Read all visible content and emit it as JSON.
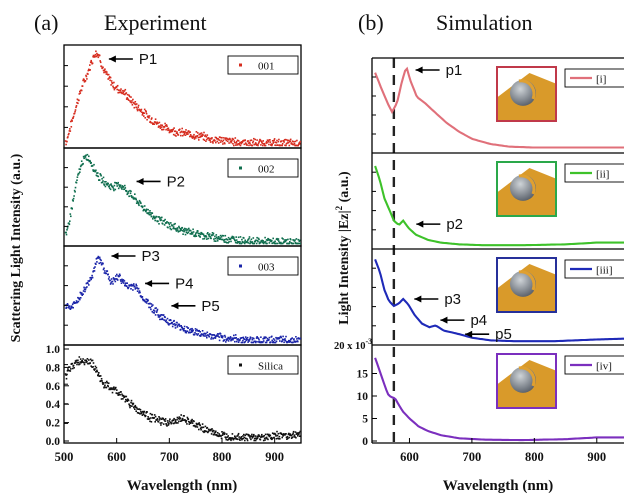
{
  "figure": {
    "panel_a_label": "(a)",
    "panel_a_title": "Experiment",
    "panel_b_label": "(b)",
    "panel_b_title": "Simulation"
  },
  "chart_data": [
    {
      "type": "scatter",
      "title": "Experiment",
      "xlabel": "Wavelength (nm)",
      "ylabel": "Scattering Light Intensity (a.u.)",
      "xlim": [
        500,
        950
      ],
      "xticks": [
        "500",
        "600",
        "700",
        "800",
        "900"
      ],
      "grid": false,
      "panels": [
        {
          "legend": "001",
          "color": "#d62c1e",
          "annotations": [
            {
              "text": "P1",
              "x": 570
            }
          ],
          "curve": [
            [
              505,
              0.05
            ],
            [
              515,
              0.25
            ],
            [
              525,
              0.45
            ],
            [
              535,
              0.62
            ],
            [
              545,
              0.75
            ],
            [
              553,
              0.88
            ],
            [
              560,
              0.97
            ],
            [
              567,
              0.93
            ],
            [
              575,
              0.78
            ],
            [
              585,
              0.7
            ],
            [
              595,
              0.62
            ],
            [
              605,
              0.58
            ],
            [
              615,
              0.55
            ],
            [
              625,
              0.48
            ],
            [
              640,
              0.4
            ],
            [
              660,
              0.3
            ],
            [
              680,
              0.22
            ],
            [
              700,
              0.17
            ],
            [
              720,
              0.14
            ],
            [
              740,
              0.12
            ],
            [
              760,
              0.1
            ],
            [
              780,
              0.07
            ],
            [
              800,
              0.06
            ],
            [
              830,
              0.04
            ],
            [
              870,
              0.03
            ],
            [
              910,
              0.03
            ],
            [
              948,
              0.03
            ]
          ]
        },
        {
          "legend": "002",
          "color": "#0f6e4e",
          "annotations": [
            {
              "text": "P2",
              "x": 615
            }
          ],
          "curve": [
            [
              505,
              0.1
            ],
            [
              515,
              0.4
            ],
            [
              525,
              0.7
            ],
            [
              535,
              0.9
            ],
            [
              545,
              0.95
            ],
            [
              555,
              0.85
            ],
            [
              565,
              0.74
            ],
            [
              575,
              0.68
            ],
            [
              590,
              0.62
            ],
            [
              605,
              0.65
            ],
            [
              615,
              0.6
            ],
            [
              630,
              0.52
            ],
            [
              650,
              0.4
            ],
            [
              670,
              0.3
            ],
            [
              690,
              0.23
            ],
            [
              710,
              0.18
            ],
            [
              730,
              0.14
            ],
            [
              760,
              0.1
            ],
            [
              790,
              0.07
            ],
            [
              820,
              0.05
            ],
            [
              860,
              0.03
            ],
            [
              900,
              0.02
            ],
            [
              948,
              0.02
            ]
          ]
        },
        {
          "legend": "003",
          "color": "#1a24a8",
          "annotations": [
            {
              "text": "P3",
              "x": 575
            },
            {
              "text": "P4",
              "x": 635
            },
            {
              "text": "P5",
              "x": 685
            }
          ],
          "curve": [
            [
              505,
              0.4
            ],
            [
              515,
              0.38
            ],
            [
              525,
              0.45
            ],
            [
              540,
              0.58
            ],
            [
              555,
              0.75
            ],
            [
              565,
              0.92
            ],
            [
              575,
              0.82
            ],
            [
              590,
              0.65
            ],
            [
              605,
              0.72
            ],
            [
              620,
              0.6
            ],
            [
              635,
              0.62
            ],
            [
              650,
              0.48
            ],
            [
              665,
              0.4
            ],
            [
              680,
              0.3
            ],
            [
              695,
              0.25
            ],
            [
              710,
              0.2
            ],
            [
              730,
              0.15
            ],
            [
              760,
              0.1
            ],
            [
              790,
              0.06
            ],
            [
              830,
              0.04
            ],
            [
              880,
              0.03
            ],
            [
              948,
              0.03
            ]
          ]
        },
        {
          "legend": "Silica",
          "color": "#111111",
          "ylim": [
            0.0,
            1.0
          ],
          "yticks": [
            "0.0",
            "0.2",
            "0.4",
            "0.6",
            "0.8",
            "1.0"
          ],
          "curve": [
            [
              505,
              0.72
            ],
            [
              515,
              0.82
            ],
            [
              525,
              0.86
            ],
            [
              535,
              0.88
            ],
            [
              545,
              0.87
            ],
            [
              555,
              0.84
            ],
            [
              565,
              0.72
            ],
            [
              575,
              0.62
            ],
            [
              590,
              0.57
            ],
            [
              605,
              0.52
            ],
            [
              620,
              0.44
            ],
            [
              640,
              0.34
            ],
            [
              660,
              0.27
            ],
            [
              680,
              0.22
            ],
            [
              700,
              0.2
            ],
            [
              715,
              0.22
            ],
            [
              725,
              0.25
            ],
            [
              740,
              0.2
            ],
            [
              760,
              0.15
            ],
            [
              780,
              0.1
            ],
            [
              800,
              0.06
            ],
            [
              820,
              0.05
            ],
            [
              850,
              0.04
            ],
            [
              880,
              0.04
            ],
            [
              910,
              0.06
            ],
            [
              948,
              0.07
            ]
          ]
        }
      ]
    },
    {
      "type": "line",
      "title": "Simulation",
      "xlabel": "Wavelength (nm)",
      "ylabel": "Light Intensity |Ez|2 (a.u.)",
      "xlim": [
        540,
        950
      ],
      "xticks": [
        "600",
        "700",
        "800",
        "900"
      ],
      "grid": false,
      "dashed_reference_x": 575,
      "panels": [
        {
          "legend": "[i]",
          "color": "#e0707a",
          "annotations": [
            {
              "text": "p1",
              "x": 597
            }
          ],
          "curve": [
            [
              545,
              0.9
            ],
            [
              555,
              0.72
            ],
            [
              565,
              0.55
            ],
            [
              572,
              0.45
            ],
            [
              580,
              0.55
            ],
            [
              588,
              0.8
            ],
            [
              595,
              0.97
            ],
            [
              602,
              0.8
            ],
            [
              612,
              0.62
            ],
            [
              625,
              0.55
            ],
            [
              640,
              0.45
            ],
            [
              660,
              0.32
            ],
            [
              680,
              0.22
            ],
            [
              700,
              0.14
            ],
            [
              730,
              0.08
            ],
            [
              760,
              0.05
            ],
            [
              800,
              0.04
            ],
            [
              850,
              0.04
            ],
            [
              900,
              0.04
            ],
            [
              948,
              0.04
            ]
          ]
        },
        {
          "legend": "[ii]",
          "color": "#3ec22a",
          "annotations": [
            {
              "text": "p2",
              "x": 595
            }
          ],
          "curve": [
            [
              545,
              0.92
            ],
            [
              553,
              0.75
            ],
            [
              560,
              0.55
            ],
            [
              568,
              0.42
            ],
            [
              575,
              0.3
            ],
            [
              583,
              0.25
            ],
            [
              590,
              0.3
            ],
            [
              598,
              0.22
            ],
            [
              610,
              0.14
            ],
            [
              630,
              0.08
            ],
            [
              650,
              0.05
            ],
            [
              680,
              0.03
            ],
            [
              720,
              0.02
            ],
            [
              780,
              0.02
            ],
            [
              850,
              0.03
            ],
            [
              900,
              0.05
            ],
            [
              948,
              0.05
            ]
          ]
        },
        {
          "legend": "[iii]",
          "color": "#1f2ab8",
          "annotations": [
            {
              "text": "p3",
              "x": 595
            },
            {
              "text": "p4",
              "x": 640
            },
            {
              "text": "p5",
              "x": 670
            }
          ],
          "curve": [
            [
              545,
              0.95
            ],
            [
              553,
              0.8
            ],
            [
              560,
              0.6
            ],
            [
              567,
              0.48
            ],
            [
              575,
              0.42
            ],
            [
              583,
              0.45
            ],
            [
              590,
              0.5
            ],
            [
              598,
              0.44
            ],
            [
              608,
              0.32
            ],
            [
              620,
              0.22
            ],
            [
              632,
              0.18
            ],
            [
              642,
              0.2
            ],
            [
              655,
              0.14
            ],
            [
              668,
              0.12
            ],
            [
              680,
              0.1
            ],
            [
              700,
              0.06
            ],
            [
              730,
              0.03
            ],
            [
              770,
              0.02
            ],
            [
              830,
              0.02
            ],
            [
              900,
              0.04
            ],
            [
              948,
              0.05
            ]
          ]
        },
        {
          "legend": "[iv]",
          "color": "#7b2fbe",
          "ymax": 20,
          "y_exponent": "20 x 10-3",
          "yticks": [
            "0",
            "5",
            "10",
            "15"
          ],
          "curve": [
            [
              545,
              18.5
            ],
            [
              550,
              16.5
            ],
            [
              555,
              14.5
            ],
            [
              560,
              12.5
            ],
            [
              565,
              10.5
            ],
            [
              570,
              9.8
            ],
            [
              577,
              9.5
            ],
            [
              583,
              8.0
            ],
            [
              590,
              6.5
            ],
            [
              600,
              5.0
            ],
            [
              615,
              3.2
            ],
            [
              630,
              2.2
            ],
            [
              650,
              1.3
            ],
            [
              680,
              0.6
            ],
            [
              720,
              0.3
            ],
            [
              780,
              0.2
            ],
            [
              850,
              0.4
            ],
            [
              900,
              0.8
            ],
            [
              948,
              0.8
            ]
          ]
        }
      ]
    }
  ]
}
